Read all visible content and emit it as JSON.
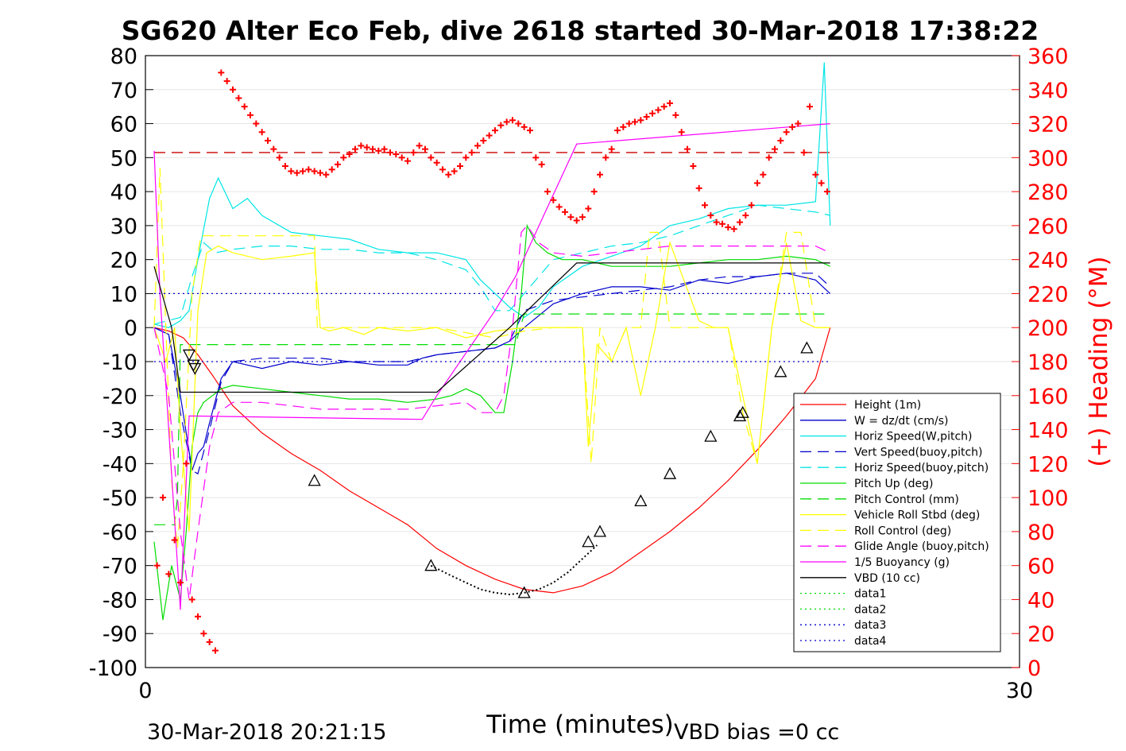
{
  "chart_data": {
    "type": "line",
    "title": "SG620 Alter Eco Feb, dive 2618 started 30-Mar-2018 17:38:22",
    "xlabel": "Time (minutes)",
    "ylabel_right": "(+) Heading (°M)",
    "footer_left": "30-Mar-2018 20:21:15",
    "footer_right": "VBD bias =0 cc",
    "xlim": [
      0,
      30
    ],
    "ylim": [
      -100,
      80
    ],
    "ylim_right": [
      0,
      360
    ],
    "x_ticks": [
      "0",
      "30"
    ],
    "y_ticks": [
      "80",
      "70",
      "60",
      "50",
      "40",
      "30",
      "20",
      "10",
      "0",
      "-10",
      "-20",
      "-30",
      "-40",
      "-50",
      "-60",
      "-70",
      "-80",
      "-90",
      "-100"
    ],
    "y_ticks_right": [
      "360",
      "340",
      "320",
      "300",
      "280",
      "260",
      "240",
      "220",
      "200",
      "180",
      "160",
      "140",
      "120",
      "100",
      "80",
      "60",
      "40",
      "20",
      "0"
    ],
    "grid": true,
    "legend_position": "lower-right",
    "colors": {
      "height": "#ff0000",
      "w": "#0000cc",
      "horiz_w": "#00e5e5",
      "vert_buoy": "#0000cc",
      "horiz_buoy": "#00e5e5",
      "pitch_up": "#00dd00",
      "pitch_ctrl": "#00dd00",
      "roll": "#ffff00",
      "roll_ctrl": "#ffff00",
      "glide": "#ff00ff",
      "buoy": "#ff00ff",
      "vbd": "#000000",
      "data1": "#00dd00",
      "data2": "#00dd00",
      "data3": "#0000cc",
      "data4": "#0000cc"
    },
    "series": [
      {
        "key": "height",
        "name": "Height (1m)",
        "dash": "solid",
        "x": [
          0.3,
          0.8,
          1.3,
          1.8,
          2.3,
          3.0,
          4.0,
          5.0,
          6.0,
          7.0,
          8.0,
          9.0,
          10.0,
          11.0,
          12.0,
          13.0,
          14.0,
          15.0,
          16.0,
          17.0,
          18.0,
          19.0,
          20.0,
          21.0,
          22.0,
          23.0,
          23.5
        ],
        "y": [
          0,
          -1,
          -3,
          -8,
          -14,
          -23,
          -31,
          -37,
          -42,
          -48,
          -53,
          -58,
          -65,
          -70,
          -74,
          -77,
          -78,
          -76,
          -72,
          -66,
          -60,
          -53,
          -45,
          -36,
          -26,
          -15,
          0
        ]
      },
      {
        "key": "w",
        "name": "W = dz/dt (cm/s)",
        "dash": "solid",
        "x": [
          0.3,
          0.8,
          1.2,
          1.6,
          1.8,
          2.0,
          2.2,
          2.6,
          3.0,
          4.0,
          5.0,
          6.0,
          7.0,
          8.0,
          9.0,
          9.5,
          10.0,
          11.0,
          12.0,
          12.5,
          13.0,
          14.0,
          15.0,
          16.0,
          17.0,
          18.0,
          19.0,
          20.0,
          21.0,
          22.0,
          23.0,
          23.5
        ],
        "y": [
          0,
          -2,
          -20,
          -42,
          -37,
          -35,
          -28,
          -15,
          -10,
          -12,
          -10,
          -11,
          -10,
          -11,
          -11,
          -9,
          -8,
          -7,
          -6,
          -4,
          0,
          7,
          10,
          12,
          12,
          11,
          14,
          13,
          15,
          16,
          14,
          10
        ]
      },
      {
        "key": "horiz_w",
        "name": "Horiz Speed(W,pitch)",
        "dash": "solid",
        "x": [
          0.3,
          0.8,
          1.2,
          1.5,
          1.8,
          2.2,
          2.5,
          3.0,
          3.5,
          4.0,
          5.0,
          6.0,
          7.0,
          8.0,
          9.0,
          10.0,
          11.0,
          11.5,
          12.0,
          12.5,
          13.0,
          13.5,
          14.0,
          15.0,
          16.0,
          17.0,
          18.0,
          19.0,
          20.0,
          21.0,
          22.0,
          23.0,
          23.3,
          23.5
        ],
        "y": [
          1,
          0,
          2,
          5,
          20,
          38,
          44,
          35,
          38,
          33,
          28,
          27,
          26,
          23,
          22,
          22,
          20,
          14,
          10,
          6,
          3,
          6,
          12,
          18,
          21,
          24,
          30,
          32,
          35,
          36,
          36,
          37,
          78,
          30
        ]
      },
      {
        "key": "vert_buoy",
        "name": "Vert Speed(buoy,pitch)",
        "dash": "dashed",
        "x": [
          0.3,
          0.8,
          1.2,
          1.6,
          1.8,
          2.2,
          2.6,
          3.0,
          4.0,
          5.0,
          6.0,
          7.0,
          8.0,
          9.0,
          10.0,
          11.0,
          12.0,
          12.5,
          13.0,
          14.0,
          15.0,
          16.0,
          17.0,
          18.0,
          19.0,
          20.0,
          21.0,
          22.0,
          23.0,
          23.5
        ],
        "y": [
          0,
          -2,
          -25,
          -42,
          -43,
          -30,
          -16,
          -10,
          -9,
          -9,
          -9,
          -10,
          -10,
          -10,
          -8,
          -7,
          -6,
          -4,
          5,
          8,
          9,
          10,
          11,
          12,
          14,
          15,
          15,
          16,
          16,
          12
        ]
      },
      {
        "key": "horiz_buoy",
        "name": "Horiz Speed(buoy,pitch)",
        "dash": "dashed",
        "x": [
          0.3,
          1.2,
          1.6,
          2.0,
          2.4,
          3.0,
          4.0,
          5.0,
          6.0,
          7.0,
          8.0,
          9.0,
          10.0,
          11.0,
          11.5,
          12.0,
          12.5,
          13.0,
          14.0,
          15.0,
          16.0,
          17.0,
          18.0,
          19.0,
          20.0,
          21.0,
          22.0,
          23.0,
          23.5
        ],
        "y": [
          1,
          3,
          15,
          25,
          22,
          23,
          24,
          24,
          23,
          23,
          22,
          22,
          20,
          17,
          12,
          5,
          5,
          10,
          20,
          22,
          24,
          25,
          27,
          30,
          33,
          36,
          35,
          34,
          33
        ]
      },
      {
        "key": "pitch_up",
        "name": "Pitch Up (deg)",
        "dash": "solid",
        "x": [
          0.3,
          0.6,
          0.9,
          1.2,
          1.4,
          1.6,
          1.8,
          2.0,
          2.3,
          2.6,
          3.0,
          4.0,
          5.0,
          6.0,
          7.0,
          8.0,
          9.0,
          10.0,
          10.5,
          11.0,
          11.5,
          12.0,
          12.3,
          12.6,
          12.9,
          13.1,
          13.4,
          13.8,
          14.3,
          15.0,
          16.0,
          17.0,
          18.0,
          19.0,
          20.0,
          21.0,
          22.0,
          23.0,
          23.5
        ],
        "y": [
          -63,
          -86,
          -70,
          -80,
          -60,
          -35,
          -25,
          -22,
          -20,
          -18,
          -17,
          -18,
          -19,
          -20,
          -21,
          -21,
          -22,
          -21,
          -20,
          -18,
          -20,
          -25,
          -25,
          -10,
          10,
          30,
          25,
          22,
          20,
          20,
          18,
          18,
          18,
          19,
          20,
          20,
          21,
          20,
          18
        ]
      },
      {
        "key": "pitch_ctrl",
        "name": "Pitch Control (mm)",
        "dash": "dashed",
        "x": [
          0.3,
          1.0,
          1.1,
          1.2,
          1.3,
          12.6,
          12.7,
          13.0,
          23.5
        ],
        "y": [
          -58,
          -58,
          -50,
          -5,
          -5,
          -5,
          -5,
          4,
          4
        ]
      },
      {
        "key": "roll",
        "name": "Vehicle Roll Stbd (deg)",
        "dash": "solid",
        "x": [
          0.3,
          0.7,
          1.0,
          1.2,
          1.5,
          1.8,
          2.1,
          2.5,
          3.0,
          4.0,
          5.0,
          5.8,
          6.0,
          6.3,
          6.8,
          7.5,
          8.0,
          9.0,
          10.0,
          11.0,
          12.0,
          13.0,
          14.0,
          15.0,
          15.2,
          15.5,
          16.0,
          16.5,
          17.0,
          17.5,
          18.0,
          19.0,
          19.5,
          20.0,
          20.5,
          21.0,
          21.5,
          22.0,
          22.5,
          23.0,
          23.5
        ],
        "y": [
          0,
          -10,
          0,
          -30,
          -60,
          5,
          22,
          24,
          22,
          20,
          21,
          22,
          0,
          -1,
          0,
          -2,
          0,
          -1,
          0,
          -3,
          -1,
          0,
          0,
          0,
          -35,
          -5,
          -10,
          0,
          -20,
          0,
          25,
          2,
          0,
          0,
          -20,
          -40,
          0,
          25,
          2,
          0,
          0
        ]
      },
      {
        "key": "roll_ctrl",
        "name": "Roll Control (deg)",
        "dash": "dashed",
        "x": [
          0.3,
          0.5,
          0.7,
          0.9,
          1.1,
          1.3,
          1.6,
          1.9,
          2.2,
          5.8,
          5.9,
          6.0,
          10.0,
          12.0,
          13.0,
          14.0,
          15.0,
          15.3,
          15.6,
          16.0,
          16.5,
          17.0,
          17.3,
          17.6,
          18.0,
          19.0,
          19.5,
          20.0,
          20.5,
          21.0,
          21.5,
          22.0,
          22.5,
          23.0,
          23.5
        ],
        "y": [
          0,
          47,
          0,
          -45,
          -65,
          -40,
          10,
          27,
          27,
          27,
          0,
          0,
          0,
          -3,
          -1,
          0,
          0,
          -40,
          0,
          -10,
          0,
          0,
          28,
          28,
          0,
          0,
          0,
          0,
          -25,
          -40,
          0,
          28,
          28,
          0,
          0
        ]
      },
      {
        "key": "glide",
        "name": "Glide Angle (buoy,pitch)",
        "dash": "dashed",
        "x": [
          0.3,
          0.8,
          1.2,
          1.5,
          1.8,
          2.2,
          2.5,
          3.0,
          4.0,
          5.0,
          6.0,
          7.0,
          8.0,
          9.0,
          10.0,
          11.0,
          11.5,
          12.0,
          12.3,
          12.6,
          12.9,
          13.1,
          13.5,
          14.0,
          15.0,
          16.0,
          17.0,
          18.0,
          19.0,
          20.0,
          21.0,
          22.0,
          23.0,
          23.5
        ],
        "y": [
          0,
          -20,
          -60,
          -80,
          -60,
          -35,
          -25,
          -22,
          -22,
          -23,
          -24,
          -24,
          -24,
          -24,
          -23,
          -22,
          -25,
          -25,
          -20,
          0,
          28,
          30,
          25,
          22,
          21,
          22,
          23,
          24,
          24,
          24,
          24,
          24,
          24,
          22
        ]
      },
      {
        "key": "buoy",
        "name": "1/5 Buoyancy (g)",
        "dash": "solid",
        "x": [
          0.3,
          0.5,
          1.2,
          1.5,
          9.5,
          10.0,
          12.0,
          12.7,
          14.8,
          23.5
        ],
        "y": [
          52,
          10,
          -83,
          -26,
          -27,
          -20,
          5,
          15,
          54,
          60
        ]
      },
      {
        "key": "vbd",
        "name": "VBD (10 cc)",
        "dash": "solid",
        "x": [
          0.3,
          0.9,
          1.2,
          9.5,
          10.0,
          12.5,
          14.8,
          23.5
        ],
        "y": [
          18,
          0,
          -19,
          -19,
          -19,
          0,
          19,
          19
        ]
      },
      {
        "key": "data1",
        "name": "data1",
        "dash": "dotted",
        "x": [],
        "y": []
      },
      {
        "key": "data2",
        "name": "data2",
        "dash": "dotted",
        "x": [],
        "y": []
      },
      {
        "key": "data3",
        "name": "data3",
        "dash": "dotted",
        "x": [
          0.3,
          23.5
        ],
        "y": [
          10,
          10
        ]
      },
      {
        "key": "data4",
        "name": "data4",
        "dash": "dotted",
        "x": [
          0.3,
          23.5
        ],
        "y": [
          -10,
          -10
        ]
      }
    ],
    "reference_lines": [
      {
        "key": "heading_target",
        "axis": "right",
        "y": 303,
        "x": [
          0.3,
          23.5
        ],
        "dash": "dashed",
        "color": "#cc0000"
      }
    ],
    "dotted_bottom_segment": {
      "x": [
        9.8,
        10.5,
        11.0,
        11.5,
        12.0,
        12.5,
        13.0,
        13.5,
        14.0,
        14.5,
        15.0,
        15.5
      ],
      "y": [
        -70,
        -73,
        -75,
        -77,
        -78,
        -78.5,
        -78,
        -77,
        -75,
        -72,
        -68,
        -64
      ]
    },
    "triangles_down": {
      "x": [
        1.5,
        1.7,
        1.65
      ],
      "y": [
        -8,
        -12,
        -11
      ]
    },
    "triangles_up": {
      "x": [
        5.8,
        9.8,
        13.0,
        15.2,
        15.6,
        17.0,
        18.0,
        19.4,
        20.4,
        20.5,
        21.8,
        22.7
      ],
      "y": [
        -45,
        -70,
        -78,
        -63,
        -60,
        -51,
        -43,
        -32,
        -26,
        -25,
        -13,
        -6
      ]
    },
    "heading_points": {
      "x": [
        0.4,
        0.6,
        0.8,
        1.0,
        1.2,
        1.4,
        1.6,
        1.8,
        2.0,
        2.2,
        2.4,
        2.6,
        2.8,
        3.0,
        3.2,
        3.4,
        3.6,
        3.8,
        4.0,
        4.2,
        4.4,
        4.6,
        4.8,
        5.0,
        5.2,
        5.4,
        5.6,
        5.8,
        6.0,
        6.2,
        6.4,
        6.6,
        6.8,
        7.0,
        7.2,
        7.4,
        7.6,
        7.8,
        8.0,
        8.2,
        8.4,
        8.6,
        8.8,
        9.0,
        9.2,
        9.4,
        9.6,
        9.8,
        10.0,
        10.2,
        10.4,
        10.6,
        10.8,
        11.0,
        11.2,
        11.4,
        11.6,
        11.8,
        12.0,
        12.2,
        12.4,
        12.6,
        12.8,
        13.0,
        13.2,
        13.4,
        13.6,
        13.8,
        14.0,
        14.2,
        14.4,
        14.6,
        14.8,
        15.0,
        15.2,
        15.4,
        15.6,
        15.8,
        16.0,
        16.2,
        16.4,
        16.6,
        16.8,
        17.0,
        17.2,
        17.4,
        17.6,
        17.8,
        18.0,
        18.2,
        18.4,
        18.6,
        18.8,
        19.0,
        19.2,
        19.4,
        19.6,
        19.8,
        20.0,
        20.2,
        20.4,
        20.6,
        20.8,
        21.0,
        21.2,
        21.4,
        21.6,
        21.8,
        22.0,
        22.2,
        22.4,
        22.6,
        22.8,
        23.0,
        23.2,
        23.4
      ],
      "y": [
        60,
        100,
        55,
        75,
        50,
        120,
        40,
        30,
        20,
        15,
        10,
        350,
        345,
        340,
        335,
        330,
        325,
        320,
        315,
        310,
        305,
        300,
        295,
        292,
        291,
        292,
        293,
        292,
        291,
        290,
        293,
        296,
        300,
        302,
        305,
        307,
        306,
        305,
        304,
        305,
        303,
        302,
        300,
        298,
        303,
        307,
        305,
        300,
        297,
        293,
        290,
        292,
        295,
        300,
        303,
        307,
        310,
        313,
        316,
        319,
        321,
        322,
        320,
        318,
        316,
        300,
        296,
        280,
        275,
        271,
        268,
        265,
        263,
        265,
        270,
        280,
        290,
        300,
        305,
        316,
        318,
        320,
        321,
        322,
        324,
        326,
        328,
        330,
        332,
        325,
        315,
        305,
        295,
        282,
        272,
        266,
        262,
        261,
        259,
        258,
        262,
        266,
        272,
        285,
        290,
        300,
        305,
        310,
        315,
        318,
        320,
        303,
        330,
        290,
        285,
        280
      ]
    }
  }
}
